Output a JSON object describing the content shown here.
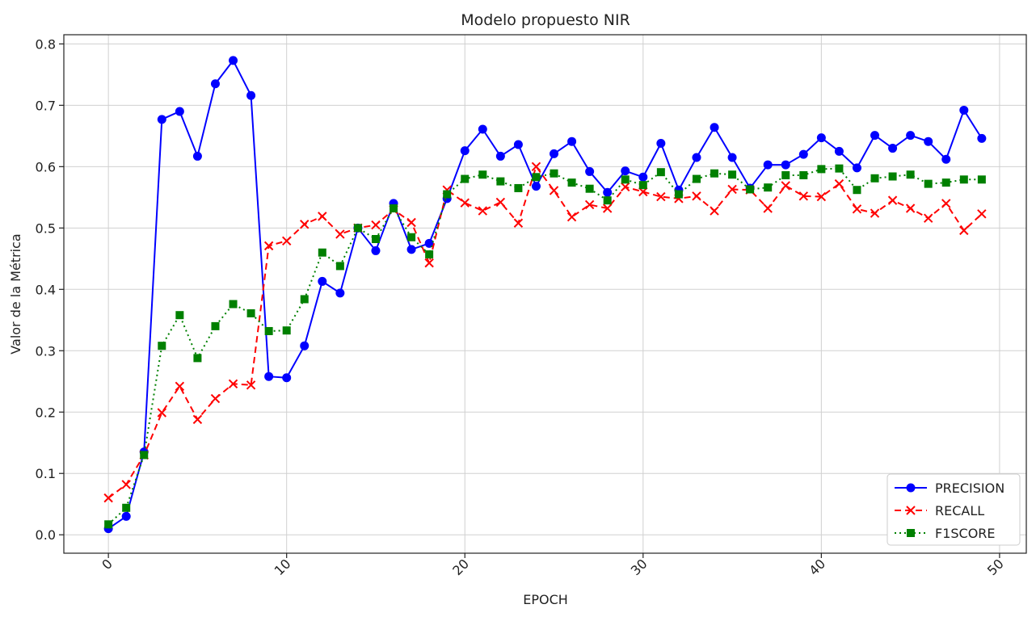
{
  "chart_data": {
    "type": "line",
    "title": "Modelo propuesto NIR",
    "xlabel": "EPOCH",
    "ylabel": "Valor de la Métrica",
    "xlim": [
      -2.5,
      51.5
    ],
    "ylim": [
      -0.03,
      0.815
    ],
    "xticks": [
      0,
      10,
      20,
      30,
      40,
      50
    ],
    "yticks": [
      0.0,
      0.1,
      0.2,
      0.3,
      0.4,
      0.5,
      0.6,
      0.7,
      0.8
    ],
    "ytick_labels": [
      "0.0",
      "0.1",
      "0.2",
      "0.3",
      "0.4",
      "0.5",
      "0.6",
      "0.7",
      "0.8"
    ],
    "xtick_rotation": 45,
    "grid": true,
    "legend_position": "bottom-right",
    "x": [
      0,
      1,
      2,
      3,
      4,
      5,
      6,
      7,
      8,
      9,
      10,
      11,
      12,
      13,
      14,
      15,
      16,
      17,
      18,
      19,
      20,
      21,
      22,
      23,
      24,
      25,
      26,
      27,
      28,
      29,
      30,
      31,
      32,
      33,
      34,
      35,
      36,
      37,
      38,
      39,
      40,
      41,
      42,
      43,
      44,
      45,
      46,
      47,
      48,
      49
    ],
    "series": [
      {
        "name": "PRECISION",
        "color": "#0000ff",
        "linestyle": "solid",
        "marker": "circle",
        "values": [
          0.01,
          0.03,
          0.135,
          0.677,
          0.69,
          0.617,
          0.735,
          0.773,
          0.716,
          0.258,
          0.256,
          0.308,
          0.413,
          0.394,
          0.5,
          0.463,
          0.54,
          0.465,
          0.475,
          0.548,
          0.626,
          0.661,
          0.617,
          0.636,
          0.568,
          0.621,
          0.641,
          0.592,
          0.558,
          0.593,
          0.583,
          0.638,
          0.562,
          0.615,
          0.664,
          0.615,
          0.565,
          0.603,
          0.603,
          0.62,
          0.647,
          0.625,
          0.598,
          0.651,
          0.63,
          0.651,
          0.641,
          0.612,
          0.692,
          0.646
        ]
      },
      {
        "name": "RECALL",
        "color": "#ff0000",
        "linestyle": "dashed",
        "marker": "x",
        "values": [
          0.06,
          0.082,
          0.13,
          0.199,
          0.242,
          0.188,
          0.222,
          0.246,
          0.244,
          0.471,
          0.479,
          0.506,
          0.519,
          0.49,
          0.5,
          0.505,
          0.53,
          0.509,
          0.443,
          0.562,
          0.541,
          0.528,
          0.542,
          0.508,
          0.6,
          0.561,
          0.518,
          0.538,
          0.532,
          0.567,
          0.559,
          0.551,
          0.548,
          0.552,
          0.528,
          0.563,
          0.562,
          0.532,
          0.569,
          0.552,
          0.551,
          0.572,
          0.531,
          0.524,
          0.545,
          0.532,
          0.516,
          0.54,
          0.496,
          0.523
        ]
      },
      {
        "name": "F1SCORE",
        "color": "#008000",
        "linestyle": "dotted",
        "marker": "square",
        "values": [
          0.017,
          0.044,
          0.13,
          0.308,
          0.358,
          0.288,
          0.34,
          0.376,
          0.361,
          0.332,
          0.333,
          0.384,
          0.46,
          0.438,
          0.5,
          0.482,
          0.532,
          0.485,
          0.457,
          0.555,
          0.58,
          0.587,
          0.576,
          0.565,
          0.583,
          0.589,
          0.574,
          0.564,
          0.545,
          0.579,
          0.57,
          0.591,
          0.555,
          0.58,
          0.589,
          0.587,
          0.563,
          0.566,
          0.586,
          0.586,
          0.596,
          0.597,
          0.562,
          0.581,
          0.584,
          0.587,
          0.572,
          0.574,
          0.579,
          0.579
        ]
      }
    ]
  }
}
